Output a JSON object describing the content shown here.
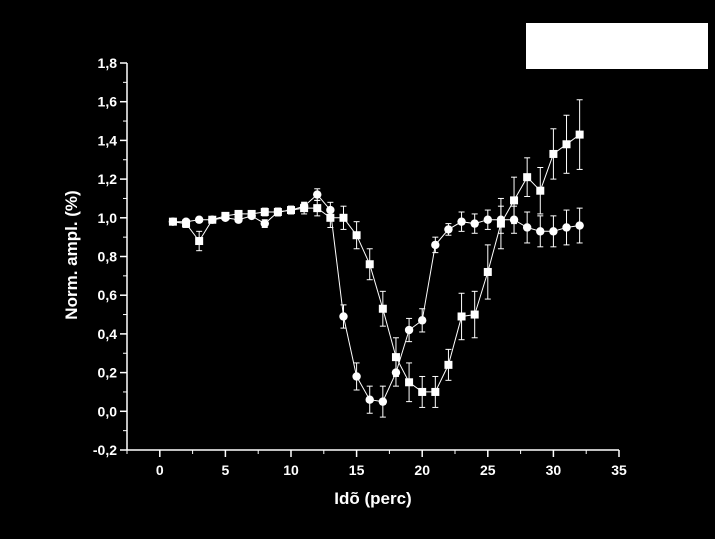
{
  "chart_data": {
    "type": "scatter",
    "title": "",
    "xlabel": "Idõ (perc)",
    "ylabel": "Norm. ampl. (%)",
    "xlim": [
      -2.5,
      35
    ],
    "ylim": [
      -0.2,
      1.8
    ],
    "xticks": [
      0,
      5,
      10,
      15,
      20,
      25,
      30,
      35
    ],
    "yticks": [
      -0.2,
      0.0,
      0.2,
      0.4,
      0.6,
      0.8,
      1.0,
      1.2,
      1.4,
      1.6,
      1.8
    ],
    "ytick_labels": [
      "-0,2",
      "0,0",
      "0,2",
      "0,4",
      "0,6",
      "0,8",
      "1,0",
      "1,2",
      "1,4",
      "1,6",
      "1,8"
    ],
    "grid": false,
    "legend": "top-right",
    "series": [
      {
        "marker": "circle",
        "color": "#ffffff",
        "x": [
          1,
          2,
          3,
          4,
          5,
          6,
          7,
          8,
          9,
          10,
          11,
          12,
          13,
          14,
          15,
          16,
          17,
          18,
          19,
          20,
          21,
          22,
          23,
          24,
          25,
          26,
          27,
          28,
          29,
          30,
          31,
          32
        ],
        "y": [
          0.98,
          0.98,
          0.99,
          0.99,
          1.0,
          0.99,
          1.01,
          0.97,
          1.03,
          1.04,
          1.06,
          1.12,
          1.04,
          0.49,
          0.18,
          0.06,
          0.05,
          0.2,
          0.42,
          0.47,
          0.86,
          0.94,
          0.98,
          0.97,
          0.99,
          0.99,
          0.99,
          0.95,
          0.93,
          0.93,
          0.95,
          0.96
        ],
        "err": [
          0.01,
          0.01,
          0.01,
          0.01,
          0.01,
          0.01,
          0.01,
          0.02,
          0.02,
          0.02,
          0.02,
          0.03,
          0.04,
          0.06,
          0.07,
          0.07,
          0.08,
          0.07,
          0.06,
          0.06,
          0.04,
          0.03,
          0.05,
          0.05,
          0.05,
          0.07,
          0.07,
          0.08,
          0.08,
          0.08,
          0.09,
          0.09
        ]
      },
      {
        "marker": "square",
        "color": "#ffffff",
        "x": [
          1,
          2,
          3,
          4,
          5,
          6,
          7,
          8,
          9,
          10,
          11,
          12,
          13,
          14,
          15,
          16,
          17,
          18,
          19,
          20,
          21,
          22,
          23,
          24,
          25,
          26,
          27,
          28,
          29,
          30,
          31,
          32
        ],
        "y": [
          0.98,
          0.97,
          0.88,
          0.99,
          1.01,
          1.02,
          1.02,
          1.03,
          1.03,
          1.04,
          1.05,
          1.05,
          1.0,
          1.0,
          0.91,
          0.76,
          0.53,
          0.28,
          0.15,
          0.1,
          0.1,
          0.24,
          0.49,
          0.5,
          0.72,
          0.97,
          1.09,
          1.21,
          1.14,
          1.33,
          1.38,
          1.43
        ],
        "err": [
          0.01,
          0.02,
          0.05,
          0.01,
          0.01,
          0.01,
          0.01,
          0.02,
          0.02,
          0.02,
          0.03,
          0.04,
          0.05,
          0.06,
          0.07,
          0.08,
          0.09,
          0.1,
          0.1,
          0.08,
          0.08,
          0.08,
          0.12,
          0.12,
          0.14,
          0.13,
          0.12,
          0.1,
          0.12,
          0.13,
          0.15,
          0.18
        ]
      }
    ]
  }
}
